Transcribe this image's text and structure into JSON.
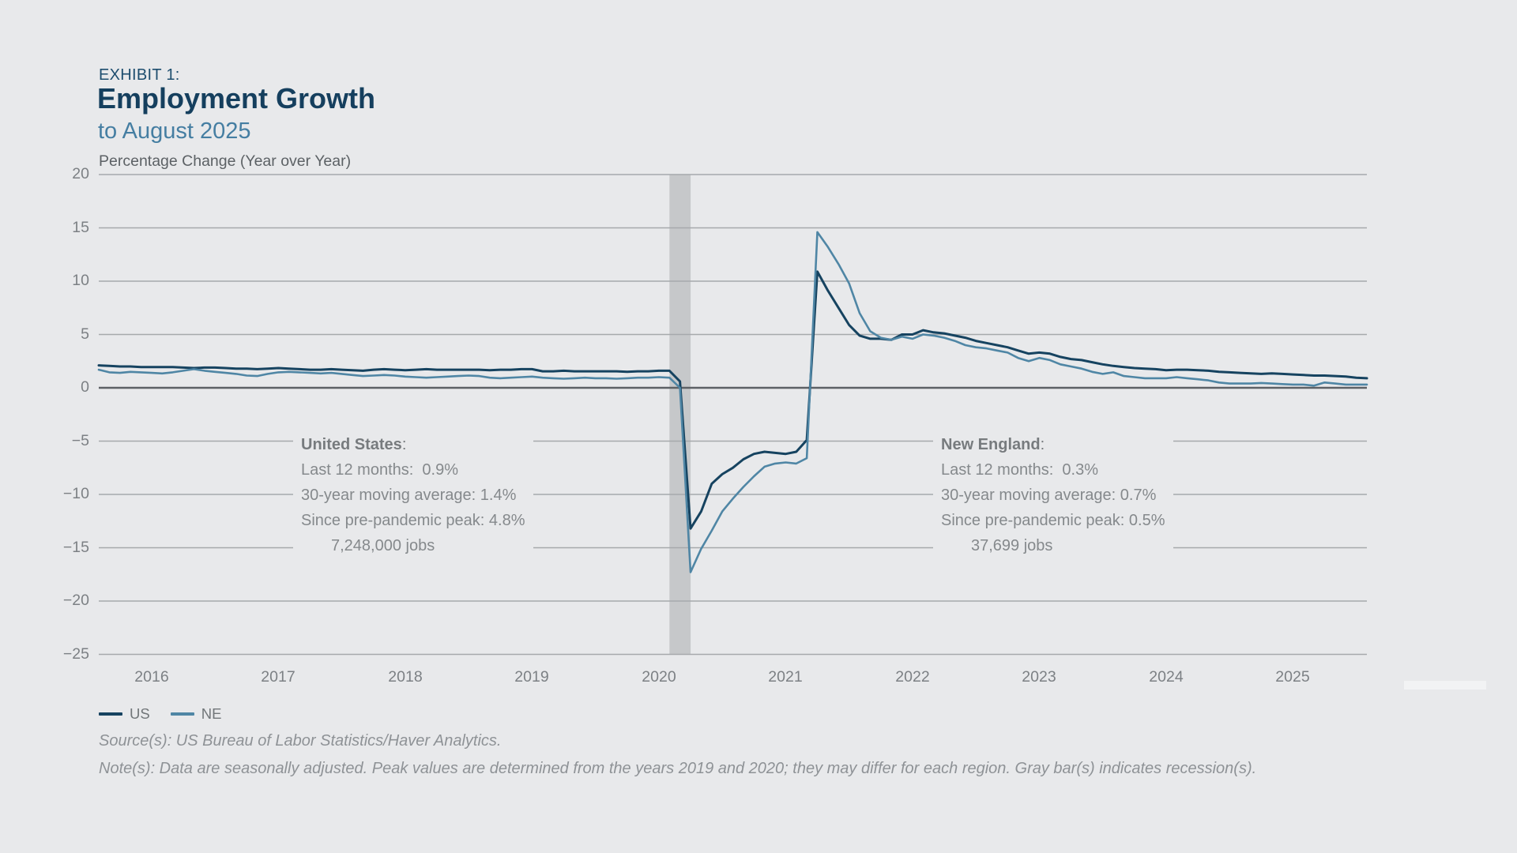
{
  "header": {
    "exhibit": "EXHIBIT 1:",
    "title": "Employment Growth",
    "subtitle": "to August 2025",
    "units": "Percentage Change (Year over Year)"
  },
  "chart_data": {
    "type": "line",
    "title": "Employment Growth to August 2025",
    "ylabel": "Percentage Change (Year over Year)",
    "ylim": [
      -25,
      20
    ],
    "grid": true,
    "legend_position": "bottom-left",
    "background": "#e8e9eb",
    "gridline_color": "#a6a9ac",
    "zero_line_color": "#5d6165",
    "recession_bar_color": "#c6c8ca",
    "y_ticks": [
      20,
      15,
      10,
      5,
      0,
      -5,
      -10,
      -15,
      -20,
      -25
    ],
    "y_tick_labels": [
      "20",
      "15",
      "10",
      "5",
      "0",
      "−5",
      "−10",
      "−15",
      "−20",
      "−25"
    ],
    "x_ticks": [
      2016,
      2017,
      2018,
      2019,
      2020,
      2021,
      2022,
      2023,
      2024,
      2025
    ],
    "x_start": "2015-08",
    "x_end": "2025-08",
    "frequency": "monthly",
    "recessions": [
      {
        "start": "2020-02",
        "end": "2020-04"
      }
    ],
    "series": [
      {
        "name": "US",
        "color": "#164360",
        "values": [
          2.1,
          2.05,
          2.0,
          2.0,
          1.95,
          1.95,
          1.95,
          1.95,
          1.9,
          1.85,
          1.9,
          1.9,
          1.85,
          1.8,
          1.8,
          1.75,
          1.8,
          1.85,
          1.8,
          1.75,
          1.7,
          1.7,
          1.75,
          1.7,
          1.65,
          1.6,
          1.7,
          1.75,
          1.7,
          1.65,
          1.7,
          1.75,
          1.7,
          1.7,
          1.7,
          1.7,
          1.7,
          1.65,
          1.7,
          1.7,
          1.75,
          1.75,
          1.55,
          1.55,
          1.6,
          1.55,
          1.55,
          1.55,
          1.55,
          1.55,
          1.5,
          1.55,
          1.55,
          1.6,
          1.6,
          0.6,
          -13.2,
          -11.6,
          -9.0,
          -8.1,
          -7.5,
          -6.7,
          -6.2,
          -6.0,
          -6.1,
          -6.2,
          -6.0,
          -4.9,
          10.9,
          9.1,
          7.5,
          5.9,
          4.9,
          4.6,
          4.6,
          4.5,
          5.0,
          5.0,
          5.4,
          5.2,
          5.1,
          4.9,
          4.7,
          4.4,
          4.2,
          4.0,
          3.8,
          3.5,
          3.2,
          3.3,
          3.2,
          2.9,
          2.7,
          2.6,
          2.4,
          2.2,
          2.05,
          1.95,
          1.85,
          1.8,
          1.75,
          1.65,
          1.7,
          1.7,
          1.65,
          1.6,
          1.5,
          1.45,
          1.4,
          1.35,
          1.3,
          1.35,
          1.3,
          1.25,
          1.2,
          1.15,
          1.15,
          1.1,
          1.05,
          0.95,
          0.9
        ]
      },
      {
        "name": "NE",
        "color": "#4f86a5",
        "values": [
          1.7,
          1.45,
          1.4,
          1.5,
          1.45,
          1.4,
          1.35,
          1.45,
          1.6,
          1.75,
          1.6,
          1.5,
          1.4,
          1.3,
          1.15,
          1.1,
          1.3,
          1.45,
          1.5,
          1.45,
          1.4,
          1.35,
          1.4,
          1.3,
          1.2,
          1.1,
          1.15,
          1.2,
          1.15,
          1.05,
          1.0,
          0.95,
          1.0,
          1.05,
          1.1,
          1.15,
          1.1,
          0.95,
          0.9,
          0.95,
          1.0,
          1.05,
          0.95,
          0.9,
          0.85,
          0.9,
          0.95,
          0.9,
          0.9,
          0.85,
          0.9,
          0.95,
          0.95,
          1.0,
          0.95,
          0.0,
          -17.3,
          -15.1,
          -13.4,
          -11.6,
          -10.4,
          -9.3,
          -8.3,
          -7.4,
          -7.1,
          -7.0,
          -7.1,
          -6.6,
          14.6,
          13.2,
          11.6,
          9.8,
          7.0,
          5.3,
          4.7,
          4.5,
          4.8,
          4.6,
          5.0,
          4.9,
          4.7,
          4.4,
          4.0,
          3.8,
          3.7,
          3.5,
          3.3,
          2.8,
          2.5,
          2.8,
          2.6,
          2.2,
          2.0,
          1.8,
          1.5,
          1.3,
          1.45,
          1.1,
          1.0,
          0.9,
          0.9,
          0.9,
          1.0,
          0.9,
          0.8,
          0.7,
          0.5,
          0.4,
          0.4,
          0.4,
          0.45,
          0.4,
          0.35,
          0.3,
          0.3,
          0.2,
          0.5,
          0.4,
          0.3,
          0.3,
          0.3
        ]
      }
    ]
  },
  "annotations": {
    "us": {
      "title": "United States",
      "colon": ":",
      "lines": [
        "Last 12 months:  0.9%",
        "30-year moving average: 1.4%",
        "Since pre-pandemic peak: 4.8%",
        "7,248,000 jobs"
      ]
    },
    "ne": {
      "title": "New England",
      "colon": ":",
      "lines": [
        "Last 12 months:  0.3%",
        "30-year moving average: 0.7%",
        "Since pre-pandemic peak: 0.5%",
        "37,699 jobs"
      ]
    }
  },
  "legend": {
    "items": [
      {
        "label": "US"
      },
      {
        "label": "NE"
      }
    ]
  },
  "footer": {
    "source": "Source(s): US Bureau of Labor Statistics/Haver Analytics.",
    "note": "Note(s): Data are seasonally adjusted. Peak values are determined from the years 2019 and 2020; they may differ for each region. Gray bar(s) indicates recession(s)."
  }
}
